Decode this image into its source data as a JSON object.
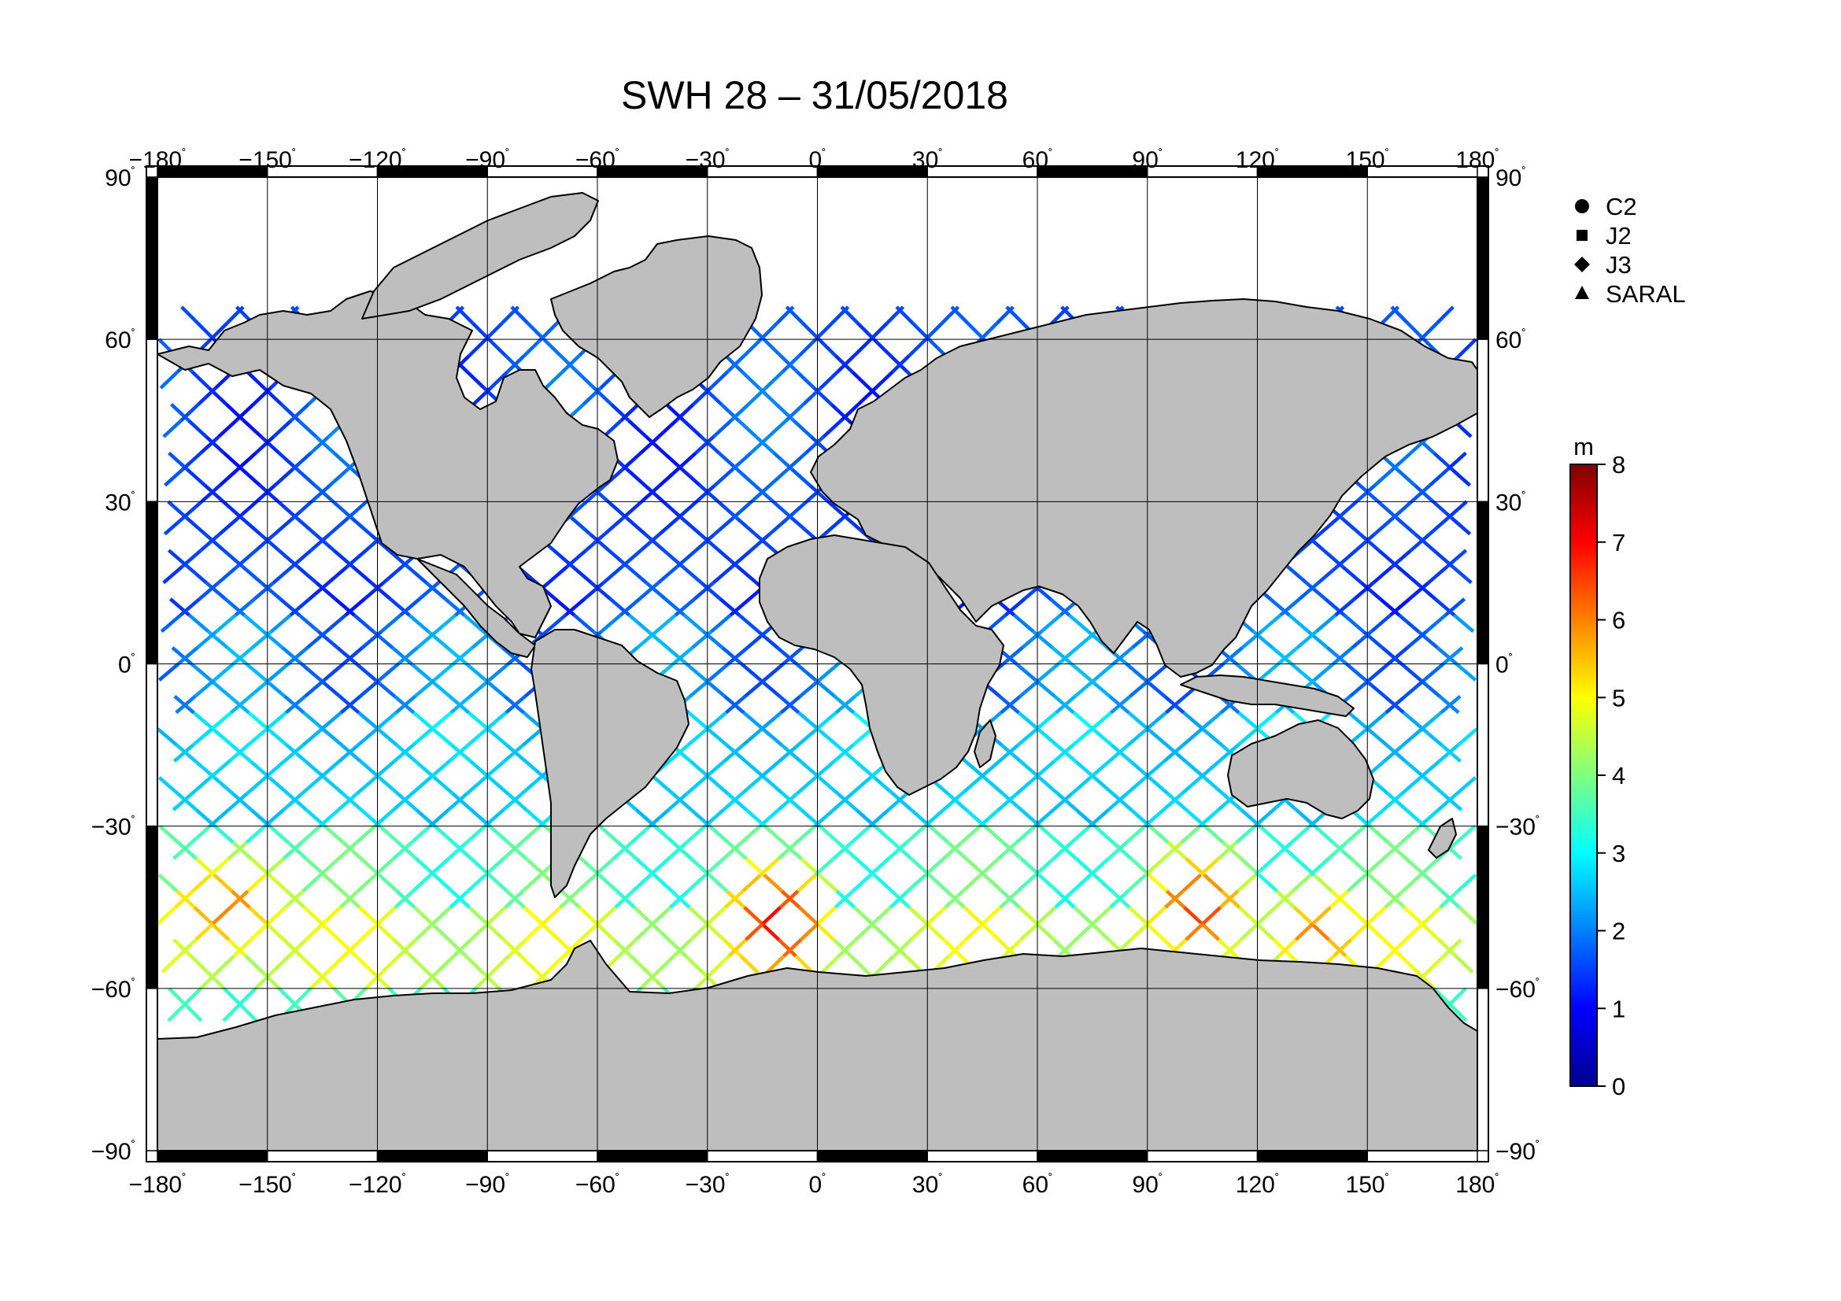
{
  "title": "SWH 28 – 31/05/2018",
  "map": {
    "lon_range": [
      -180,
      180
    ],
    "lat_range": [
      -90,
      90
    ],
    "lon_ticks": [
      -180,
      -150,
      -120,
      -90,
      -60,
      -30,
      0,
      30,
      60,
      90,
      120,
      150,
      180
    ],
    "lat_ticks": [
      90,
      60,
      30,
      0,
      -30,
      -60,
      -90
    ],
    "lon_tick_labels": [
      "−180",
      "−150",
      "−120",
      "−90",
      "−60",
      "−30",
      "0",
      "30",
      "60",
      "90",
      "120",
      "150",
      "180"
    ],
    "lat_tick_labels": [
      "90",
      "60",
      "30",
      "0",
      "−30",
      "−60",
      "−90"
    ],
    "degree_symbol": "˚",
    "grid": true,
    "land_color": "#bebebe",
    "ocean_color": "#ffffff"
  },
  "legend": {
    "placement": "right",
    "items": [
      {
        "label": "C2",
        "marker": "circle"
      },
      {
        "label": "J2",
        "marker": "square"
      },
      {
        "label": "J3",
        "marker": "diamond"
      },
      {
        "label": "SARAL",
        "marker": "triangle"
      }
    ]
  },
  "colorbar": {
    "unit": "m",
    "min": 0,
    "max": 8,
    "tick_labels": [
      "8",
      "7",
      "6",
      "5",
      "4",
      "3",
      "2",
      "1",
      "0"
    ],
    "colormap": [
      "#00008f",
      "#0000ff",
      "#0080ff",
      "#00ffff",
      "#80ff80",
      "#ffff00",
      "#ff8000",
      "#ff0000",
      "#800000"
    ]
  },
  "chart_data": {
    "type": "map-tracks",
    "variable": "SWH",
    "date": "31/05/2018",
    "unit": "m",
    "swh_by_latitude_band": [
      {
        "lat_range": [
          40,
          66
        ],
        "swh_m": 1.6
      },
      {
        "lat_range": [
          10,
          40
        ],
        "swh_m": 1.5
      },
      {
        "lat_range": [
          -10,
          10
        ],
        "swh_m": 2.0
      },
      {
        "lat_range": [
          -30,
          -10
        ],
        "swh_m": 2.6
      },
      {
        "lat_range": [
          -45,
          -30
        ],
        "swh_m": 3.6
      },
      {
        "lat_range": [
          -60,
          -45
        ],
        "swh_m": 4.6
      },
      {
        "lat_range": [
          -66,
          -60
        ],
        "swh_m": 3.5
      }
    ],
    "peak_swh_regions": [
      {
        "lon": -160,
        "lat": -45,
        "swh_m": 6.8
      },
      {
        "lon": -10,
        "lat": -48,
        "swh_m": 6.9
      },
      {
        "lon": 105,
        "lat": -45,
        "swh_m": 6.5
      },
      {
        "lon": 135,
        "lat": -50,
        "swh_m": 6.6
      }
    ]
  }
}
